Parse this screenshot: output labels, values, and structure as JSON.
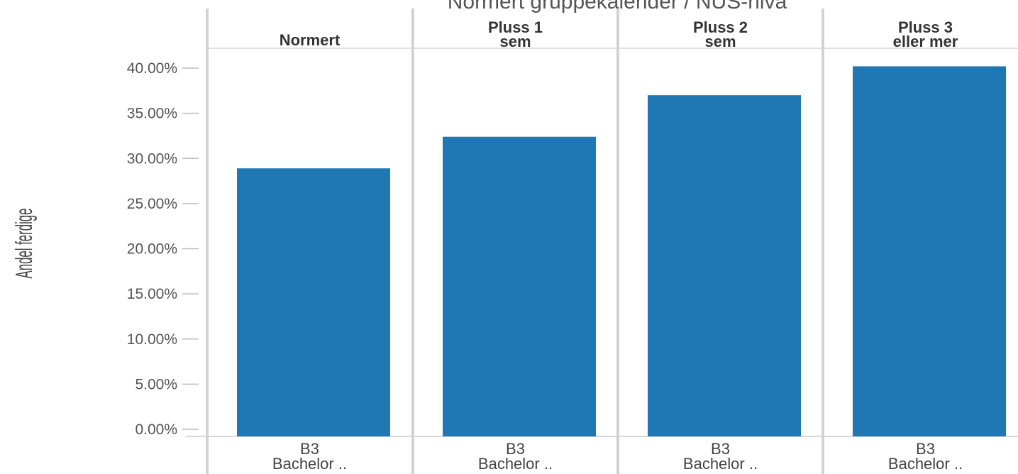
{
  "chart_data": {
    "type": "bar",
    "title": "Normert gruppekalender / NUS-nivå",
    "ylabel": "Andel ferdige",
    "ylim": [
      0,
      40
    ],
    "yticks": [
      "0.00%",
      "5.00%",
      "10.00%",
      "15.00%",
      "20.00%",
      "25.00%",
      "30.00%",
      "35.00%",
      "40.00%"
    ],
    "panels": [
      {
        "header": [
          "Normert"
        ],
        "category": [
          "B3",
          "Bachelor .."
        ],
        "value": 28.9
      },
      {
        "header": [
          "Pluss 1",
          "sem"
        ],
        "category": [
          "B3",
          "Bachelor .."
        ],
        "value": 32.4
      },
      {
        "header": [
          "Pluss 2",
          "sem"
        ],
        "category": [
          "B3",
          "Bachelor .."
        ],
        "value": 37.0
      },
      {
        "header": [
          "Pluss 3",
          "eller mer"
        ],
        "category": [
          "B3",
          "Bachelor .."
        ],
        "value": 40.2
      }
    ],
    "bar_color": "#1f77b4",
    "grid": false
  }
}
